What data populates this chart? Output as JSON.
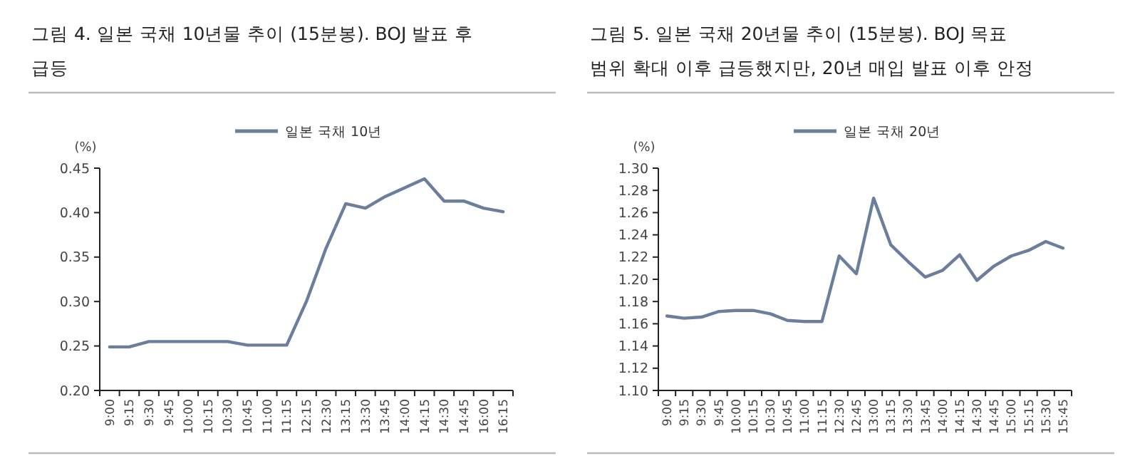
{
  "chart_data": [
    {
      "type": "line",
      "title": "그림 4. 일본 국채 10년물 추이 (15분봉). BOJ 발표 후 급등",
      "ylabel": "(%)",
      "categories": [
        "9:00",
        "9:15",
        "9:30",
        "9:45",
        "10:00",
        "10:15",
        "10:30",
        "10:45",
        "11:00",
        "11:15",
        "12:15",
        "12:30",
        "13:15",
        "13:30",
        "13:45",
        "14:00",
        "14:15",
        "14:30",
        "14:45",
        "16:00",
        "16:15"
      ],
      "series": [
        {
          "name": "일본 국채 10년",
          "color": "#6b7f9c",
          "values": [
            0.249,
            0.249,
            0.255,
            0.255,
            0.255,
            0.255,
            0.255,
            0.251,
            0.251,
            0.251,
            0.3,
            0.36,
            0.41,
            0.405,
            0.418,
            0.428,
            0.438,
            0.413,
            0.413,
            0.405,
            0.401
          ]
        }
      ],
      "ylim": [
        0.2,
        0.45
      ],
      "yticks": [
        {
          "value": 0.2,
          "label": "0.20"
        },
        {
          "value": 0.25,
          "label": "0.25"
        },
        {
          "value": 0.3,
          "label": "0.30"
        },
        {
          "value": 0.35,
          "label": "0.35"
        },
        {
          "value": 0.4,
          "label": "0.40"
        },
        {
          "value": 0.45,
          "label": "0.45"
        }
      ],
      "grid": false,
      "legend": "top",
      "marker": "none"
    },
    {
      "type": "line",
      "title": "그림 5. 일본 국채 20년물 추이 (15분봉). BOJ 목표 범위 확대 이후 급등했지만, 20년 매입 발표 이후 안정",
      "ylabel": "(%)",
      "categories": [
        "9:00",
        "9:15",
        "9:30",
        "9:45",
        "10:00",
        "10:15",
        "10:30",
        "10:45",
        "11:00",
        "11:15",
        "12:30",
        "12:45",
        "13:00",
        "13:15",
        "13:30",
        "13:45",
        "14:00",
        "14:15",
        "14:30",
        "14:45",
        "15:00",
        "15:15",
        "15:30",
        "15:45"
      ],
      "series": [
        {
          "name": "일본 국채 20년",
          "color": "#6b7f9c",
          "values": [
            1.167,
            1.165,
            1.166,
            1.171,
            1.172,
            1.172,
            1.169,
            1.163,
            1.162,
            1.162,
            1.221,
            1.205,
            1.273,
            1.231,
            1.216,
            1.202,
            1.208,
            1.222,
            1.199,
            1.212,
            1.221,
            1.226,
            1.234,
            1.228
          ]
        }
      ],
      "ylim": [
        1.1,
        1.3
      ],
      "yticks": [
        {
          "value": 1.1,
          "label": "1.10"
        },
        {
          "value": 1.12,
          "label": "1.12"
        },
        {
          "value": 1.14,
          "label": "1.14"
        },
        {
          "value": 1.16,
          "label": "1.16"
        },
        {
          "value": 1.18,
          "label": "1.18"
        },
        {
          "value": 1.2,
          "label": "1.20"
        },
        {
          "value": 1.22,
          "label": "1.22"
        },
        {
          "value": 1.24,
          "label": "1.24"
        },
        {
          "value": 1.26,
          "label": "1.26"
        },
        {
          "value": 1.28,
          "label": "1.28"
        },
        {
          "value": 1.3,
          "label": "1.30"
        }
      ],
      "grid": false,
      "legend": "top",
      "marker": "none"
    }
  ]
}
